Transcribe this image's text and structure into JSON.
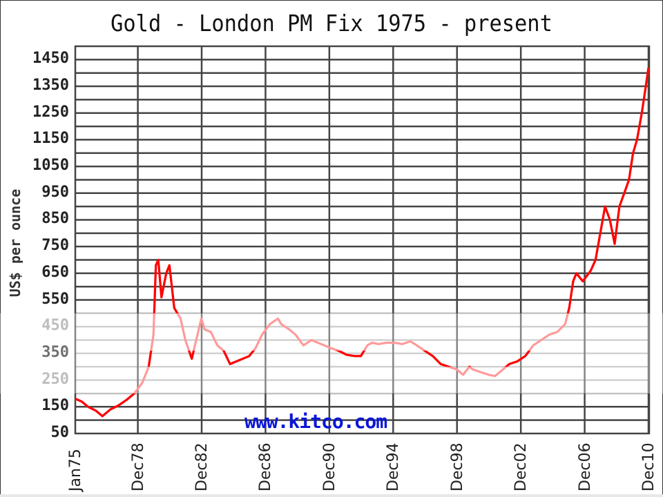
{
  "chart_data": {
    "type": "line",
    "title": "Gold - London PM Fix 1975 - present",
    "xlabel": "",
    "ylabel": "US$ per ounce",
    "ylim": [
      50,
      1500
    ],
    "xlim": [
      "Jan75",
      "Dec10"
    ],
    "grid": true,
    "legend": null,
    "y_ticks": [
      1450,
      1350,
      1250,
      1150,
      1050,
      950,
      850,
      750,
      650,
      550,
      450,
      350,
      250,
      150,
      50
    ],
    "x_ticks": [
      "Jan75",
      "Dec78",
      "Dec82",
      "Dec86",
      "Dec90",
      "Dec94",
      "Dec98",
      "Dec02",
      "Dec06",
      "Dec10"
    ],
    "annotation": "www.kitco.com",
    "series": [
      {
        "name": "Gold London PM Fix",
        "color": "#ff0000",
        "x": [
          1975.0,
          1975.4,
          1975.8,
          1976.3,
          1976.7,
          1977.2,
          1977.7,
          1978.2,
          1978.7,
          1979.2,
          1979.6,
          1979.9,
          1980.05,
          1980.2,
          1980.4,
          1980.7,
          1980.9,
          1981.2,
          1981.6,
          1981.9,
          1982.3,
          1982.5,
          1982.9,
          1983.1,
          1983.5,
          1983.9,
          1984.3,
          1984.7,
          1985.1,
          1985.5,
          1985.9,
          1986.3,
          1986.7,
          1987.2,
          1987.7,
          1987.9,
          1988.4,
          1988.8,
          1989.3,
          1989.8,
          1990.2,
          1990.6,
          1991.0,
          1991.5,
          1992.0,
          1992.5,
          1992.9,
          1993.3,
          1993.6,
          1994.0,
          1994.5,
          1995.0,
          1995.5,
          1996.0,
          1996.4,
          1996.9,
          1997.4,
          1997.9,
          1998.4,
          1998.9,
          1999.3,
          1999.7,
          1999.9,
          2000.4,
          2000.9,
          2001.3,
          2001.7,
          2002.2,
          2002.7,
          2003.2,
          2003.7,
          2004.2,
          2004.7,
          2005.2,
          2005.7,
          2005.95,
          2006.2,
          2006.4,
          2006.8,
          2007.3,
          2007.6,
          2007.9,
          2008.2,
          2008.5,
          2008.8,
          2009.1,
          2009.4,
          2009.7,
          2009.95,
          2010.2,
          2010.5,
          2010.75,
          2010.92
        ],
        "values": [
          180,
          170,
          150,
          135,
          115,
          140,
          155,
          175,
          200,
          240,
          300,
          420,
          680,
          700,
          560,
          650,
          680,
          520,
          480,
          400,
          330,
          380,
          480,
          440,
          430,
          380,
          360,
          310,
          320,
          330,
          340,
          370,
          420,
          460,
          480,
          460,
          440,
          420,
          380,
          400,
          390,
          380,
          370,
          360,
          345,
          340,
          340,
          380,
          390,
          385,
          390,
          390,
          385,
          395,
          380,
          360,
          340,
          310,
          300,
          290,
          270,
          300,
          290,
          280,
          270,
          265,
          285,
          310,
          320,
          340,
          380,
          400,
          420,
          430,
          460,
          520,
          620,
          650,
          620,
          660,
          700,
          800,
          900,
          850,
          760,
          900,
          950,
          1000,
          1100,
          1150,
          1250,
          1350,
          1420
        ]
      }
    ]
  },
  "page": {
    "title": "Gold - London PM Fix 1975 - present",
    "ylabel": "US$ per ounce",
    "watermark": "www.kitco.com"
  }
}
